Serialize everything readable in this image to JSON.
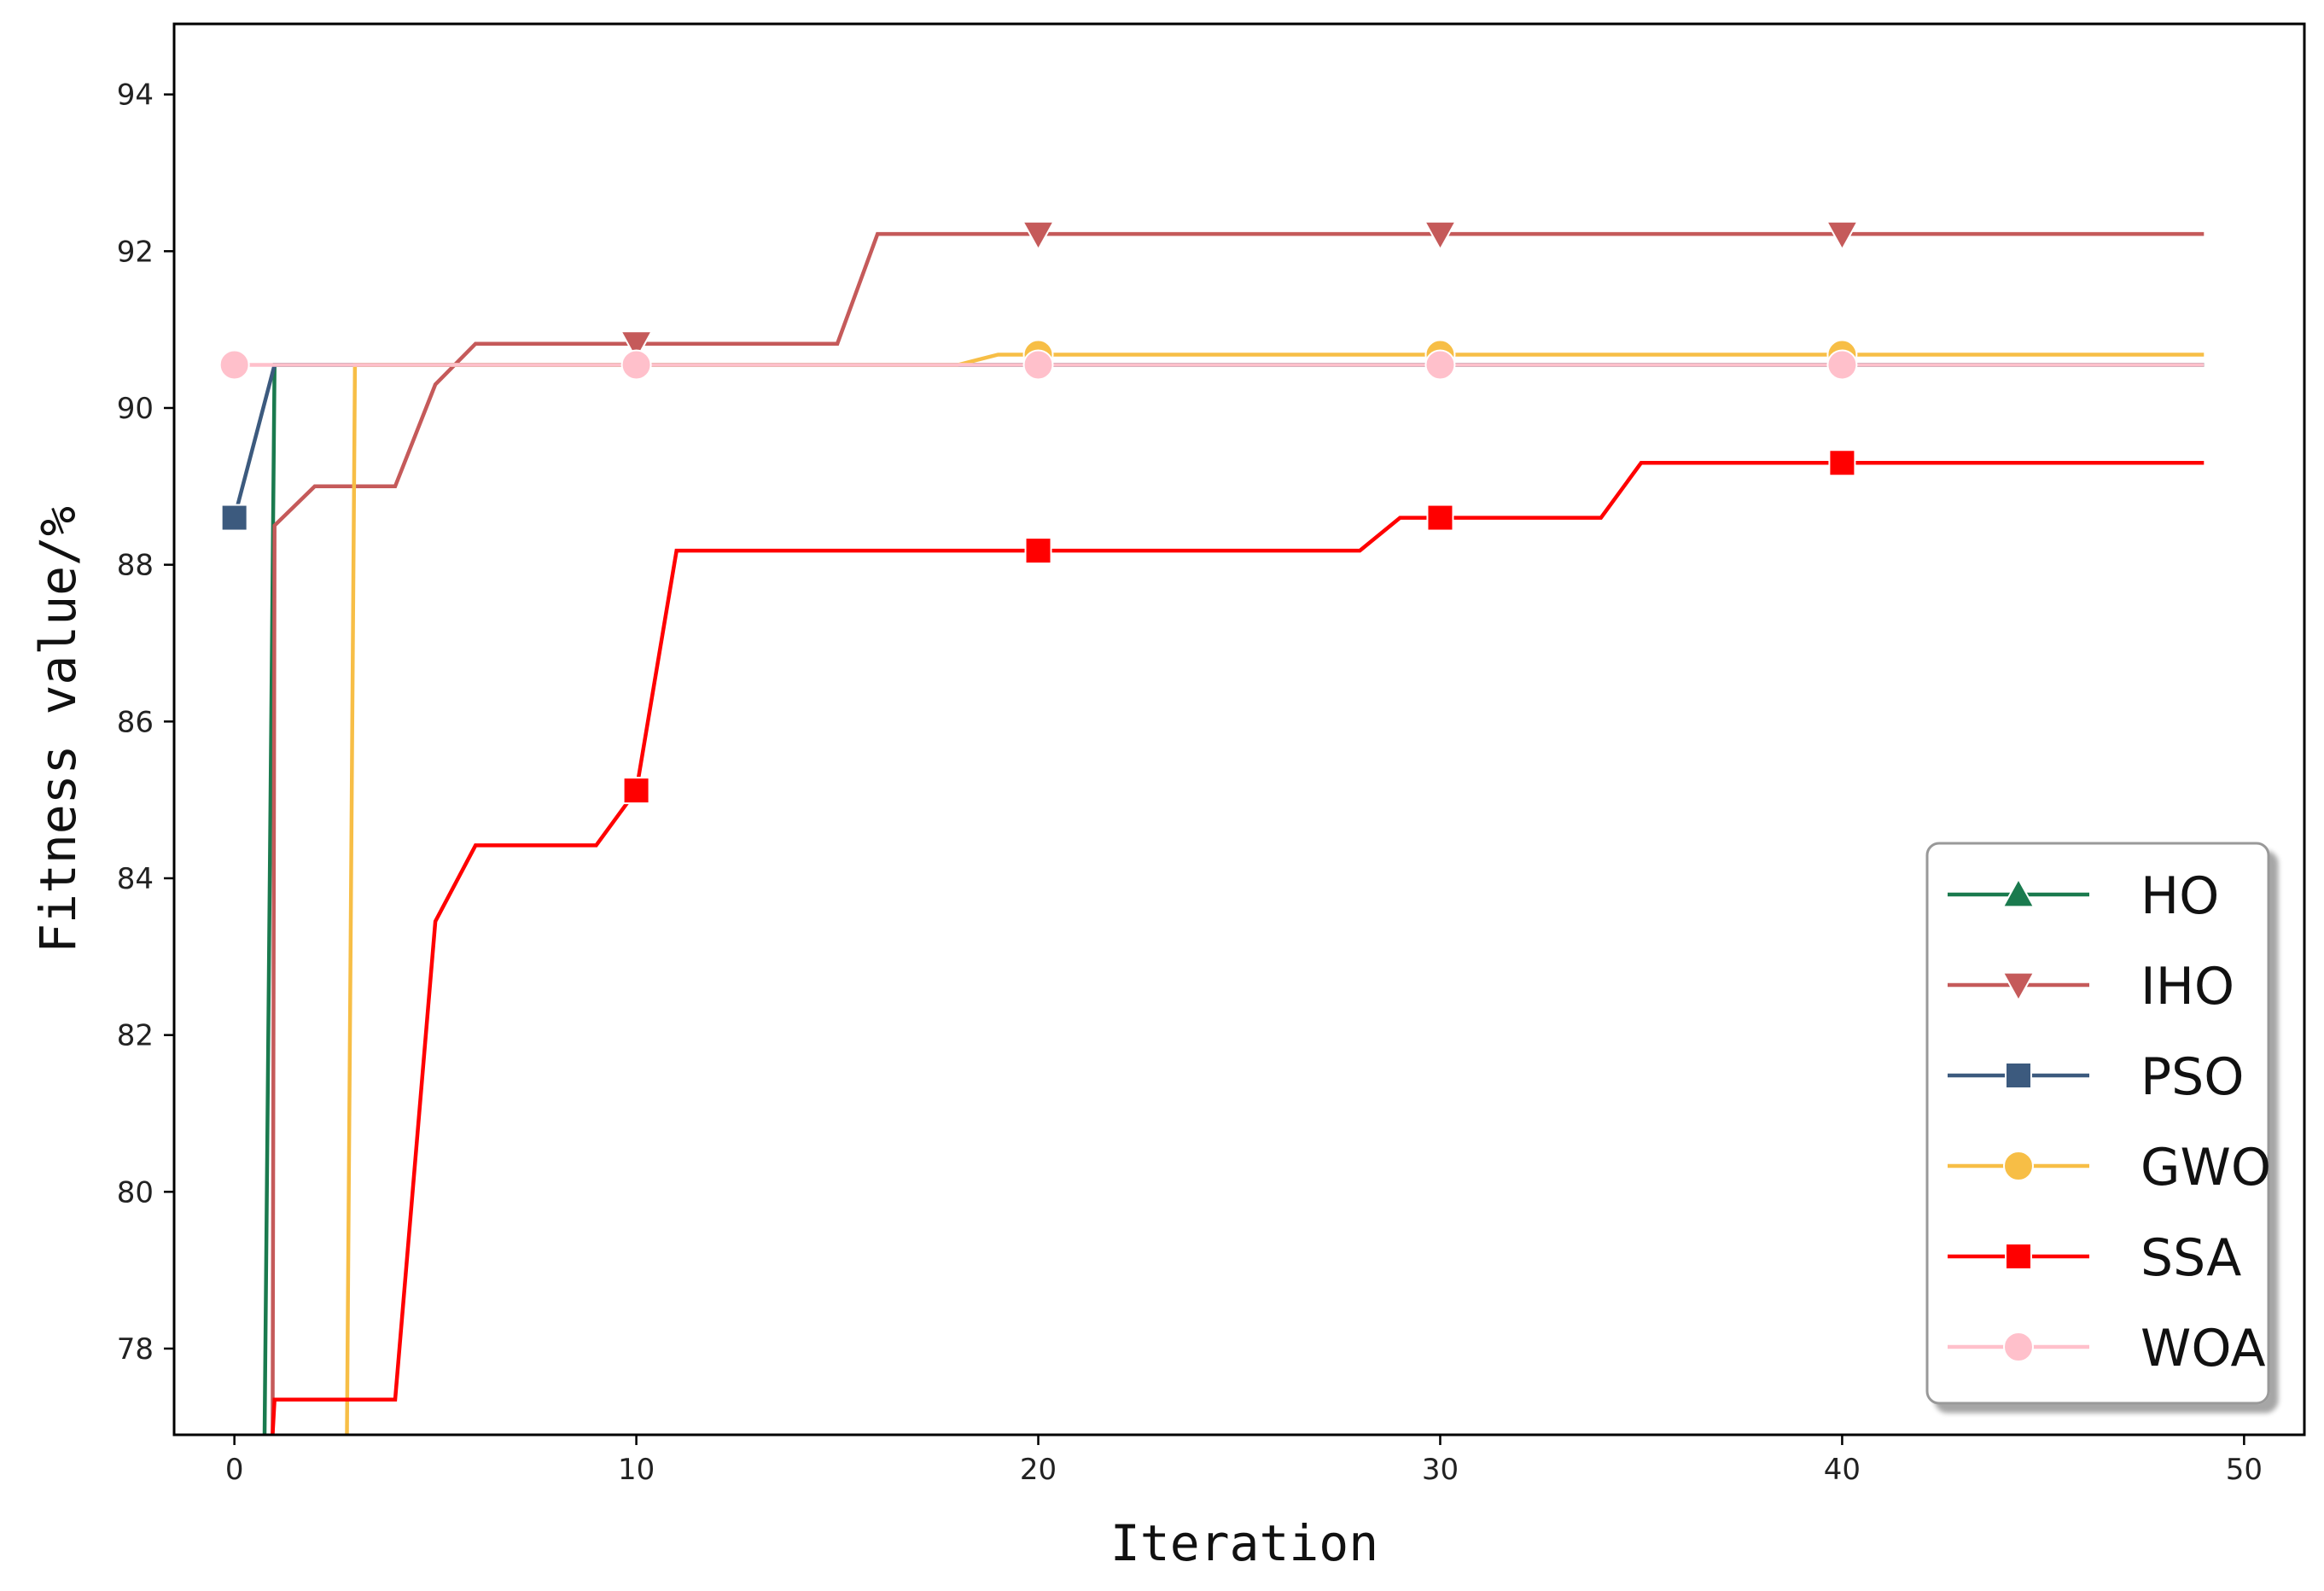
{
  "chart_data": {
    "type": "line",
    "title": "",
    "xlabel": "Iteration",
    "ylabel": "Fitness value/%",
    "xlim": [
      -1.5,
      51.5
    ],
    "ylim": [
      76.9,
      94.9
    ],
    "xticks": [
      0,
      10,
      20,
      30,
      40,
      50
    ],
    "yticks": [
      78,
      80,
      82,
      84,
      86,
      88,
      90,
      92,
      94
    ],
    "grid": false,
    "legend_position": "lower-right",
    "series": [
      {
        "name": "HO",
        "color": "#1a7a4e",
        "marker": "triangle-up",
        "points": [
          [
            0.75,
            76.9
          ],
          [
            1,
            90.55
          ],
          [
            49,
            90.55
          ]
        ],
        "marker_x": []
      },
      {
        "name": "IHO",
        "color": "#c55a5a",
        "marker": "triangle-down",
        "points": [
          [
            0.95,
            76.9
          ],
          [
            1,
            88.5
          ],
          [
            2,
            89.0
          ],
          [
            4,
            89.0
          ],
          [
            5,
            90.3
          ],
          [
            6,
            90.82
          ],
          [
            15,
            90.82
          ],
          [
            16,
            92.22
          ],
          [
            49,
            92.22
          ]
        ],
        "marker_x": [
          10,
          20,
          30,
          40
        ]
      },
      {
        "name": "PSO",
        "color": "#3c5a7e",
        "marker": "square",
        "points": [
          [
            0,
            88.6
          ],
          [
            1,
            90.55
          ],
          [
            49,
            90.55
          ]
        ],
        "marker_x": [
          0
        ]
      },
      {
        "name": "GWO",
        "color": "#f7be46",
        "marker": "circle",
        "points": [
          [
            2.8,
            76.9
          ],
          [
            3,
            90.55
          ],
          [
            18,
            90.55
          ],
          [
            19,
            90.68
          ],
          [
            49,
            90.68
          ]
        ],
        "marker_x": [
          20,
          30,
          40
        ]
      },
      {
        "name": "SSA",
        "color": "#ff0000",
        "marker": "square",
        "points": [
          [
            0.95,
            76.9
          ],
          [
            1,
            77.35
          ],
          [
            4,
            77.35
          ],
          [
            5,
            83.45
          ],
          [
            6,
            84.42
          ],
          [
            9,
            84.42
          ],
          [
            10,
            85.12
          ],
          [
            11,
            88.18
          ],
          [
            28,
            88.18
          ],
          [
            29,
            88.6
          ],
          [
            34,
            88.6
          ],
          [
            35,
            89.3
          ],
          [
            49,
            89.3
          ]
        ],
        "marker_x": [
          10,
          20,
          30,
          40
        ]
      },
      {
        "name": "WOA",
        "color": "#ffc0cb",
        "marker": "circle",
        "points": [
          [
            0,
            90.55
          ],
          [
            49,
            90.55
          ]
        ],
        "marker_x": [
          0,
          10,
          20,
          30,
          40
        ]
      }
    ]
  }
}
